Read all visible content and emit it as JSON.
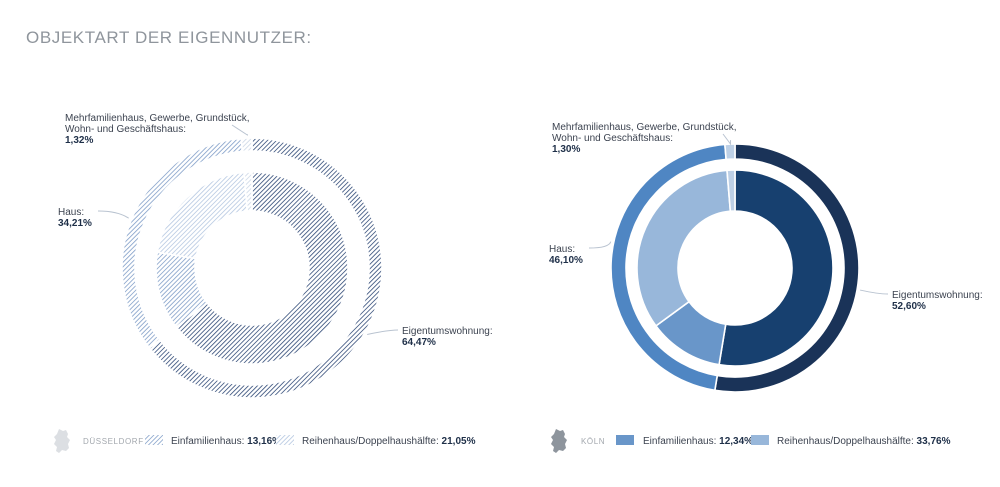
{
  "title": "OBJEKTART DER EIGENNUTZER:",
  "chart_data": [
    {
      "type": "donut",
      "city": "DÜSSELDORF",
      "outer_ring": [
        {
          "label": "Eigentumswohnung:",
          "value": 64.47,
          "display": "64,47%",
          "color": "#3e5680"
        },
        {
          "label": "Haus:",
          "value": 34.21,
          "display": "34,21%",
          "color": "#8aa5cc"
        },
        {
          "label": "Mehrfamilienhaus, Gewerbe, Grundstück, Wohn- und Geschäftshaus:",
          "value": 1.32,
          "display": "1,32%",
          "color": "#d0dae8"
        }
      ],
      "inner_ring": [
        {
          "label": "Eigentumswohnung",
          "value": 64.47,
          "color": "#3e5680"
        },
        {
          "label": "Einfamilienhaus:",
          "value": 13.16,
          "display": "13,16%",
          "color": "#8aa5cc"
        },
        {
          "label": "Reihenhaus/Doppelhaushälfte:",
          "value": 21.05,
          "display": "21,05%",
          "color": "#bacbe3"
        },
        {
          "label": "Mehrfamilienhaus, Gewerbe, Grundstück, Wohn- und Geschäftshaus",
          "value": 1.32,
          "color": "#d0dae8"
        }
      ],
      "pattern": "hatched"
    },
    {
      "type": "donut",
      "city": "KÖLN",
      "outer_ring": [
        {
          "label": "Eigentumswohnung:",
          "value": 52.6,
          "display": "52,60%",
          "color": "#1a3358"
        },
        {
          "label": "Haus:",
          "value": 46.1,
          "display": "46,10%",
          "color": "#4f86c3"
        },
        {
          "label": "Mehrfamilienhaus, Gewerbe, Grundstück, Wohn- und Geschäftshaus:",
          "value": 1.3,
          "display": "1,30%",
          "color": "#bdd0e6"
        }
      ],
      "inner_ring": [
        {
          "label": "Eigentumswohnung",
          "value": 52.6,
          "color": "#17406f"
        },
        {
          "label": "Einfamilienhaus:",
          "value": 12.34,
          "display": "12,34%",
          "color": "#6996c9"
        },
        {
          "label": "Reihenhaus/Doppelhaushälfte:",
          "value": 33.76,
          "display": "33,76%",
          "color": "#98b7da"
        },
        {
          "label": "Mehrfamilienhaus, Gewerbe, Grundstück, Wohn- und Geschäftshaus",
          "value": 1.3,
          "color": "#bdd0e6"
        }
      ],
      "pattern": "solid"
    }
  ]
}
